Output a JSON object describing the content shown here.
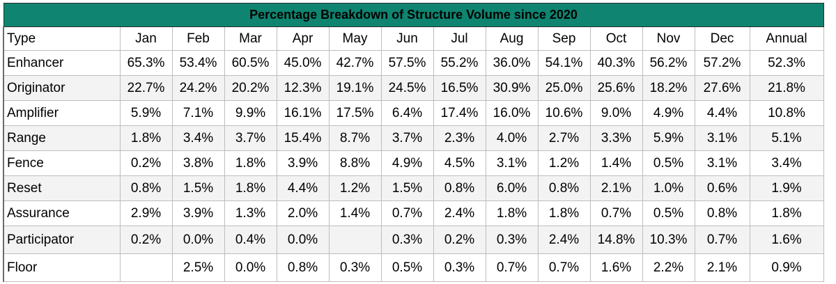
{
  "title": "Percentage Breakdown of Structure Volume since 2020",
  "headers": [
    "Type",
    "Jan",
    "Feb",
    "Mar",
    "Apr",
    "May",
    "Jun",
    "Jul",
    "Aug",
    "Sep",
    "Oct",
    "Nov",
    "Dec",
    "Annual"
  ],
  "rows": [
    {
      "type": "Enhancer",
      "values": [
        "65.3%",
        "53.4%",
        "60.5%",
        "45.0%",
        "42.7%",
        "57.5%",
        "55.2%",
        "36.0%",
        "54.1%",
        "40.3%",
        "56.2%",
        "57.2%"
      ],
      "annual": "52.3%"
    },
    {
      "type": "Originator",
      "values": [
        "22.7%",
        "24.2%",
        "20.2%",
        "12.3%",
        "19.1%",
        "24.5%",
        "16.5%",
        "30.9%",
        "25.0%",
        "25.6%",
        "18.2%",
        "27.6%"
      ],
      "annual": "21.8%"
    },
    {
      "type": "Amplifier",
      "values": [
        "5.9%",
        "7.1%",
        "9.9%",
        "16.1%",
        "17.5%",
        "6.4%",
        "17.4%",
        "16.0%",
        "10.6%",
        "9.0%",
        "4.9%",
        "4.4%"
      ],
      "annual": "10.8%"
    },
    {
      "type": "Range",
      "values": [
        "1.8%",
        "3.4%",
        "3.7%",
        "15.4%",
        "8.7%",
        "3.7%",
        "2.3%",
        "4.0%",
        "2.7%",
        "3.3%",
        "5.9%",
        "3.1%"
      ],
      "annual": "5.1%"
    },
    {
      "type": "Fence",
      "values": [
        "0.2%",
        "3.8%",
        "1.8%",
        "3.9%",
        "8.8%",
        "4.9%",
        "4.5%",
        "3.1%",
        "1.2%",
        "1.4%",
        "0.5%",
        "3.1%"
      ],
      "annual": "3.4%"
    },
    {
      "type": "Reset",
      "values": [
        "0.8%",
        "1.5%",
        "1.8%",
        "4.4%",
        "1.2%",
        "1.5%",
        "0.8%",
        "6.0%",
        "0.8%",
        "2.1%",
        "1.0%",
        "0.6%"
      ],
      "annual": "1.9%"
    },
    {
      "type": "Assurance",
      "values": [
        "2.9%",
        "3.9%",
        "1.3%",
        "2.0%",
        "1.4%",
        "0.7%",
        "2.4%",
        "1.8%",
        "1.8%",
        "0.7%",
        "0.5%",
        "0.8%"
      ],
      "annual": "1.8%"
    },
    {
      "type": "Participator",
      "values": [
        "0.2%",
        "0.0%",
        "0.4%",
        "0.0%",
        "",
        "0.3%",
        "0.2%",
        "0.3%",
        "2.4%",
        "14.8%",
        "10.3%",
        "0.7%"
      ],
      "annual": "1.6%"
    },
    {
      "type": "Floor",
      "values": [
        "",
        "2.5%",
        "0.0%",
        "0.8%",
        "0.3%",
        "0.5%",
        "0.3%",
        "0.7%",
        "0.7%",
        "1.6%",
        "2.2%",
        "2.1%"
      ],
      "annual": "0.9%"
    }
  ],
  "colors": {
    "title_bg": "#0f8470",
    "alt_row_bg": "#f3f3f3",
    "grid": "#bdbdbd"
  }
}
